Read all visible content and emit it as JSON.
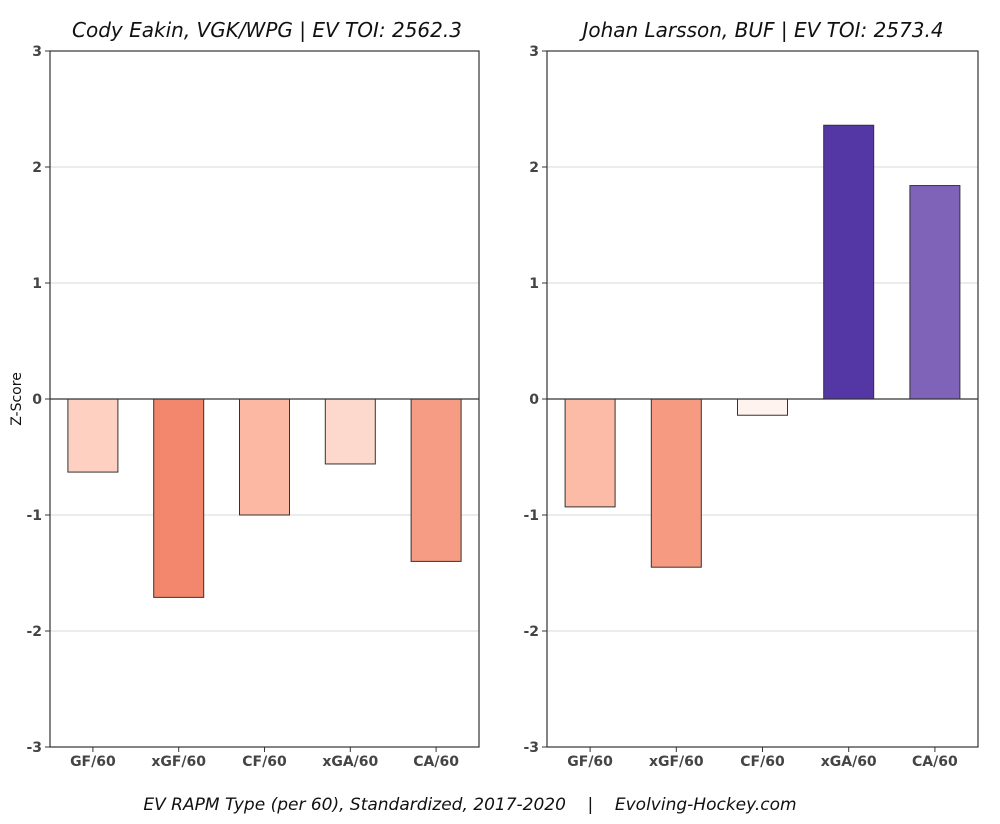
{
  "footer": "EV RAPM Type (per 60), Standardized, 2017-2020    |    Evolving-Hockey.com",
  "chart_data": [
    {
      "type": "bar",
      "title": "Cody Eakin, VGK/WPG  |  EV TOI: 2562.3",
      "ylabel": "Z-Score",
      "xlabel": "",
      "ylim": [
        -3,
        3
      ],
      "yticks": [
        -3,
        -2,
        -1,
        0,
        1,
        2,
        3
      ],
      "grid": true,
      "categories": [
        "GF/60",
        "xGF/60",
        "CF/60",
        "xGA/60",
        "CA/60"
      ],
      "values": [
        -0.63,
        -1.71,
        -1.0,
        -0.56,
        -1.4
      ],
      "colors": [
        "#fdd0c2",
        "#f2876d",
        "#fcb8a2",
        "#fdd8cc",
        "#f69c84"
      ]
    },
    {
      "type": "bar",
      "title": "Johan Larsson, BUF  |  EV TOI: 2573.4",
      "ylabel": "",
      "xlabel": "",
      "ylim": [
        -3,
        3
      ],
      "yticks": [
        -3,
        -2,
        -1,
        0,
        1,
        2,
        3
      ],
      "grid": true,
      "categories": [
        "GF/60",
        "xGF/60",
        "CF/60",
        "xGA/60",
        "CA/60"
      ],
      "values": [
        -0.93,
        -1.45,
        -0.14,
        2.36,
        1.84
      ],
      "colors": [
        "#fcbba6",
        "#f69b82",
        "#fff3ef",
        "#5437a4",
        "#7e63b8"
      ]
    }
  ]
}
